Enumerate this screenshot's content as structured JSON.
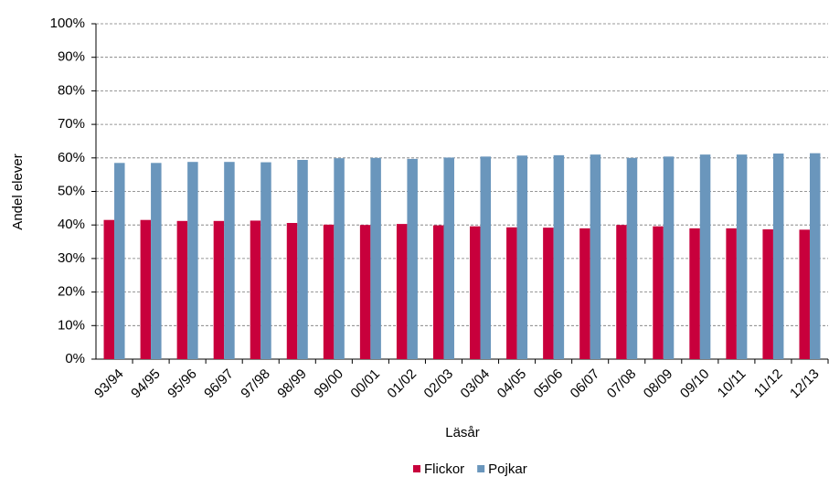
{
  "chart_data": {
    "type": "bar",
    "xlabel": "Läsår",
    "ylabel": "Andel elever",
    "categories": [
      "93/94",
      "94/95",
      "95/96",
      "96/97",
      "97/98",
      "98/99",
      "99/00",
      "00/01",
      "01/02",
      "02/03",
      "03/04",
      "04/05",
      "05/06",
      "06/07",
      "07/08",
      "08/09",
      "09/10",
      "10/11",
      "11/12",
      "12/13"
    ],
    "series": [
      {
        "name": "Flickor",
        "color": "#c8003c",
        "values": [
          41.5,
          41.5,
          41.2,
          41.2,
          41.3,
          40.6,
          40.1,
          40.0,
          40.3,
          39.9,
          39.6,
          39.3,
          39.2,
          39.0,
          40.0,
          39.6,
          39.0,
          39.0,
          38.7,
          38.6
        ]
      },
      {
        "name": "Pojkar",
        "color": "#6a96bc",
        "values": [
          58.5,
          58.5,
          58.8,
          58.8,
          58.7,
          59.4,
          59.9,
          60.0,
          59.7,
          60.1,
          60.4,
          60.7,
          60.8,
          61.0,
          60.0,
          60.4,
          61.0,
          61.0,
          61.3,
          61.4
        ]
      }
    ],
    "ylim": [
      0,
      100
    ],
    "yticks": [
      {
        "value": 0,
        "label": "0%"
      },
      {
        "value": 10,
        "label": "10%"
      },
      {
        "value": 20,
        "label": "20%"
      },
      {
        "value": 30,
        "label": "30%"
      },
      {
        "value": 40,
        "label": "40%"
      },
      {
        "value": 50,
        "label": "50%"
      },
      {
        "value": 60,
        "label": "60%"
      },
      {
        "value": 70,
        "label": "70%"
      },
      {
        "value": 80,
        "label": "80%"
      },
      {
        "value": 90,
        "label": "90%"
      },
      {
        "value": 100,
        "label": "100%"
      }
    ],
    "grid": true,
    "legend": "bottom"
  }
}
